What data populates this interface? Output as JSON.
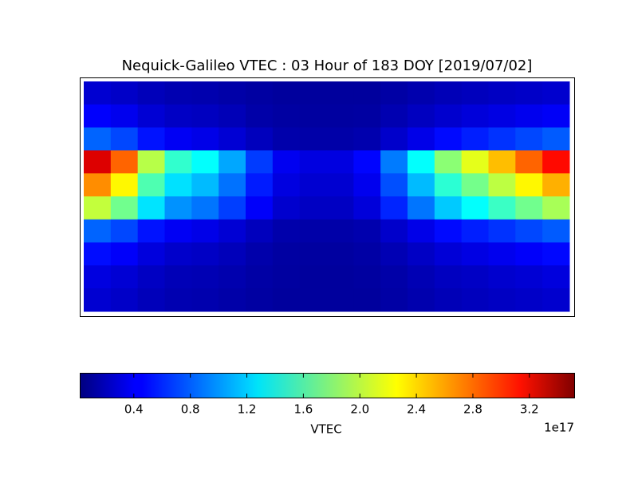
{
  "chart_data": {
    "type": "heatmap",
    "title": "Nequick-Galileo VTEC : 03 Hour of 183 DOY [2019/07/02]",
    "colormap": "jet",
    "values": [
      [
        0.3,
        0.27,
        0.22,
        0.19,
        0.18,
        0.16,
        0.14,
        0.12,
        0.12,
        0.12,
        0.12,
        0.15,
        0.18,
        0.21,
        0.23,
        0.25,
        0.27,
        0.29
      ],
      [
        0.45,
        0.4,
        0.31,
        0.26,
        0.24,
        0.21,
        0.16,
        0.14,
        0.13,
        0.13,
        0.14,
        0.19,
        0.24,
        0.29,
        0.33,
        0.36,
        0.4,
        0.43
      ],
      [
        0.8,
        0.7,
        0.52,
        0.42,
        0.38,
        0.31,
        0.23,
        0.17,
        0.16,
        0.16,
        0.18,
        0.28,
        0.38,
        0.49,
        0.56,
        0.63,
        0.7,
        0.77
      ],
      [
        3.2,
        2.74,
        1.96,
        1.5,
        1.34,
        1.03,
        0.66,
        0.41,
        0.35,
        0.35,
        0.47,
        0.88,
        1.34,
        1.81,
        2.12,
        2.43,
        2.74,
        3.05
      ],
      [
        2.6,
        2.23,
        1.6,
        1.23,
        1.1,
        0.85,
        0.55,
        0.35,
        0.3,
        0.3,
        0.4,
        0.73,
        1.1,
        1.48,
        1.73,
        1.98,
        2.23,
        2.48
      ],
      [
        2.0,
        1.72,
        1.24,
        0.96,
        0.86,
        0.67,
        0.44,
        0.29,
        0.25,
        0.25,
        0.33,
        0.58,
        0.86,
        1.15,
        1.34,
        1.53,
        1.72,
        1.91
      ],
      [
        0.8,
        0.7,
        0.52,
        0.42,
        0.38,
        0.31,
        0.23,
        0.17,
        0.16,
        0.16,
        0.18,
        0.28,
        0.38,
        0.49,
        0.56,
        0.63,
        0.7,
        0.77
      ],
      [
        0.5,
        0.44,
        0.34,
        0.28,
        0.26,
        0.22,
        0.17,
        0.14,
        0.13,
        0.13,
        0.15,
        0.2,
        0.26,
        0.32,
        0.36,
        0.4,
        0.44,
        0.48
      ],
      [
        0.35,
        0.31,
        0.25,
        0.21,
        0.2,
        0.18,
        0.15,
        0.13,
        0.12,
        0.12,
        0.13,
        0.16,
        0.2,
        0.24,
        0.26,
        0.29,
        0.31,
        0.34
      ],
      [
        0.3,
        0.27,
        0.22,
        0.19,
        0.18,
        0.16,
        0.14,
        0.12,
        0.12,
        0.12,
        0.12,
        0.15,
        0.18,
        0.21,
        0.23,
        0.25,
        0.27,
        0.29
      ]
    ],
    "colorbar": {
      "label": "VTEC",
      "lim": [
        0.02,
        3.52
      ],
      "ticks": [
        0.4,
        0.8,
        1.2,
        1.6,
        {
          "value": 2,
          "label": "2.0"
        },
        2.4,
        2.8,
        3.2
      ],
      "offset_label": "1e17"
    }
  }
}
